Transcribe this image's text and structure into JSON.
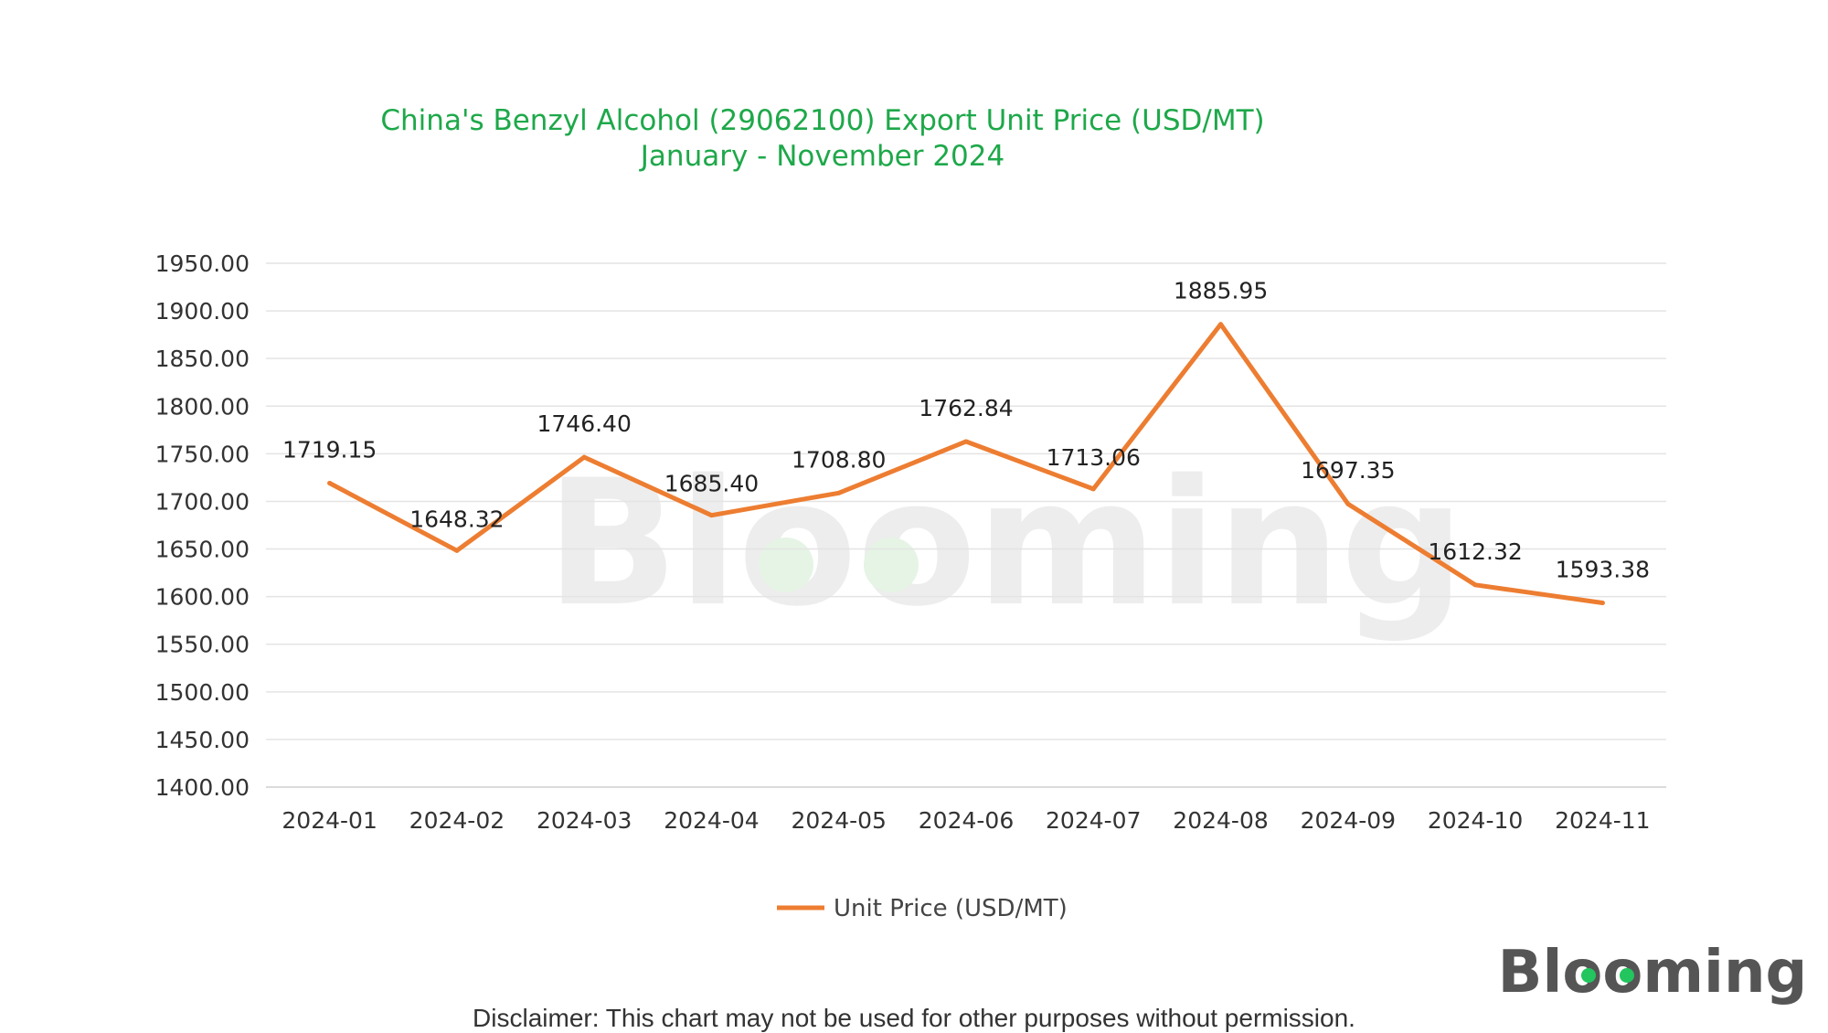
{
  "chart_data": {
    "type": "line",
    "title": "China's Benzyl Alcohol (29062100) Export Unit Price (USD/MT)",
    "subtitle": "January - November 2024",
    "categories": [
      "2024-01",
      "2024-02",
      "2024-03",
      "2024-04",
      "2024-05",
      "2024-06",
      "2024-07",
      "2024-08",
      "2024-09",
      "2024-10",
      "2024-11"
    ],
    "series": [
      {
        "name": "Unit Price (USD/MT)",
        "color": "#ed7d31",
        "values": [
          1719.15,
          1648.32,
          1746.4,
          1685.4,
          1708.8,
          1762.84,
          1713.06,
          1885.95,
          1697.35,
          1612.32,
          1593.38
        ],
        "labels": [
          "1719.15",
          "1648.32",
          "1746.40",
          "1685.40",
          "1708.80",
          "1762.84",
          "1713.06",
          "1885.95",
          "1697.35",
          "1612.32",
          "1593.38"
        ]
      }
    ],
    "ylim": [
      1400,
      1950
    ],
    "yticks": [
      "1400.00",
      "1450.00",
      "1500.00",
      "1550.00",
      "1600.00",
      "1650.00",
      "1700.00",
      "1750.00",
      "1800.00",
      "1850.00",
      "1900.00",
      "1950.00"
    ],
    "xlabel": "",
    "ylabel": "",
    "grid": true,
    "legend_position": "bottom"
  },
  "watermark": "Blooming",
  "logo": "Blooming",
  "disclaimer": "Disclaimer: This chart may not be used for other purposes without permission."
}
